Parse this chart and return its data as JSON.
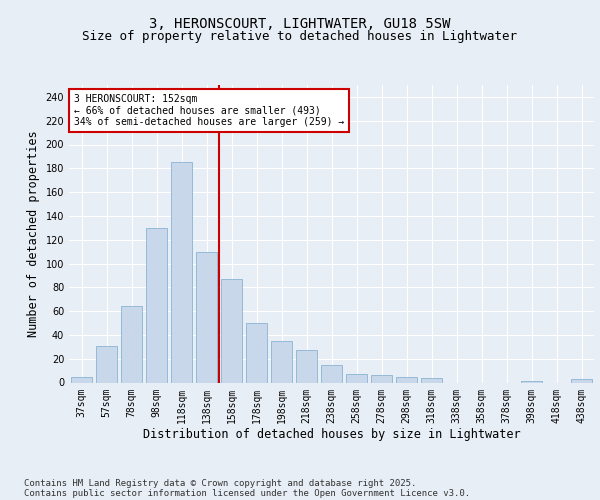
{
  "title": "3, HERONSCOURT, LIGHTWATER, GU18 5SW",
  "subtitle": "Size of property relative to detached houses in Lightwater",
  "xlabel": "Distribution of detached houses by size in Lightwater",
  "ylabel": "Number of detached properties",
  "bar_color": "#c8d8ea",
  "bar_edge_color": "#8ab4d4",
  "background_color": "#e8eef5",
  "grid_color": "#ffffff",
  "categories": [
    "37sqm",
    "57sqm",
    "78sqm",
    "98sqm",
    "118sqm",
    "138sqm",
    "158sqm",
    "178sqm",
    "198sqm",
    "218sqm",
    "238sqm",
    "258sqm",
    "278sqm",
    "298sqm",
    "318sqm",
    "338sqm",
    "358sqm",
    "378sqm",
    "398sqm",
    "418sqm",
    "438sqm"
  ],
  "values": [
    5,
    31,
    64,
    130,
    185,
    110,
    87,
    50,
    35,
    27,
    15,
    7,
    6,
    5,
    4,
    0,
    0,
    0,
    1,
    0,
    3
  ],
  "ylim": [
    0,
    250
  ],
  "yticks": [
    0,
    20,
    40,
    60,
    80,
    100,
    120,
    140,
    160,
    180,
    200,
    220,
    240
  ],
  "vline_color": "#cc0000",
  "vline_pos": 5.5,
  "annotation_text": "3 HERONSCOURT: 152sqm\n← 66% of detached houses are smaller (493)\n34% of semi-detached houses are larger (259) →",
  "annotation_box_color": "#ffffff",
  "annotation_box_edge": "#cc0000",
  "footer_line1": "Contains HM Land Registry data © Crown copyright and database right 2025.",
  "footer_line2": "Contains public sector information licensed under the Open Government Licence v3.0.",
  "title_fontsize": 10,
  "subtitle_fontsize": 9,
  "tick_fontsize": 7,
  "label_fontsize": 8.5,
  "footer_fontsize": 6.5
}
